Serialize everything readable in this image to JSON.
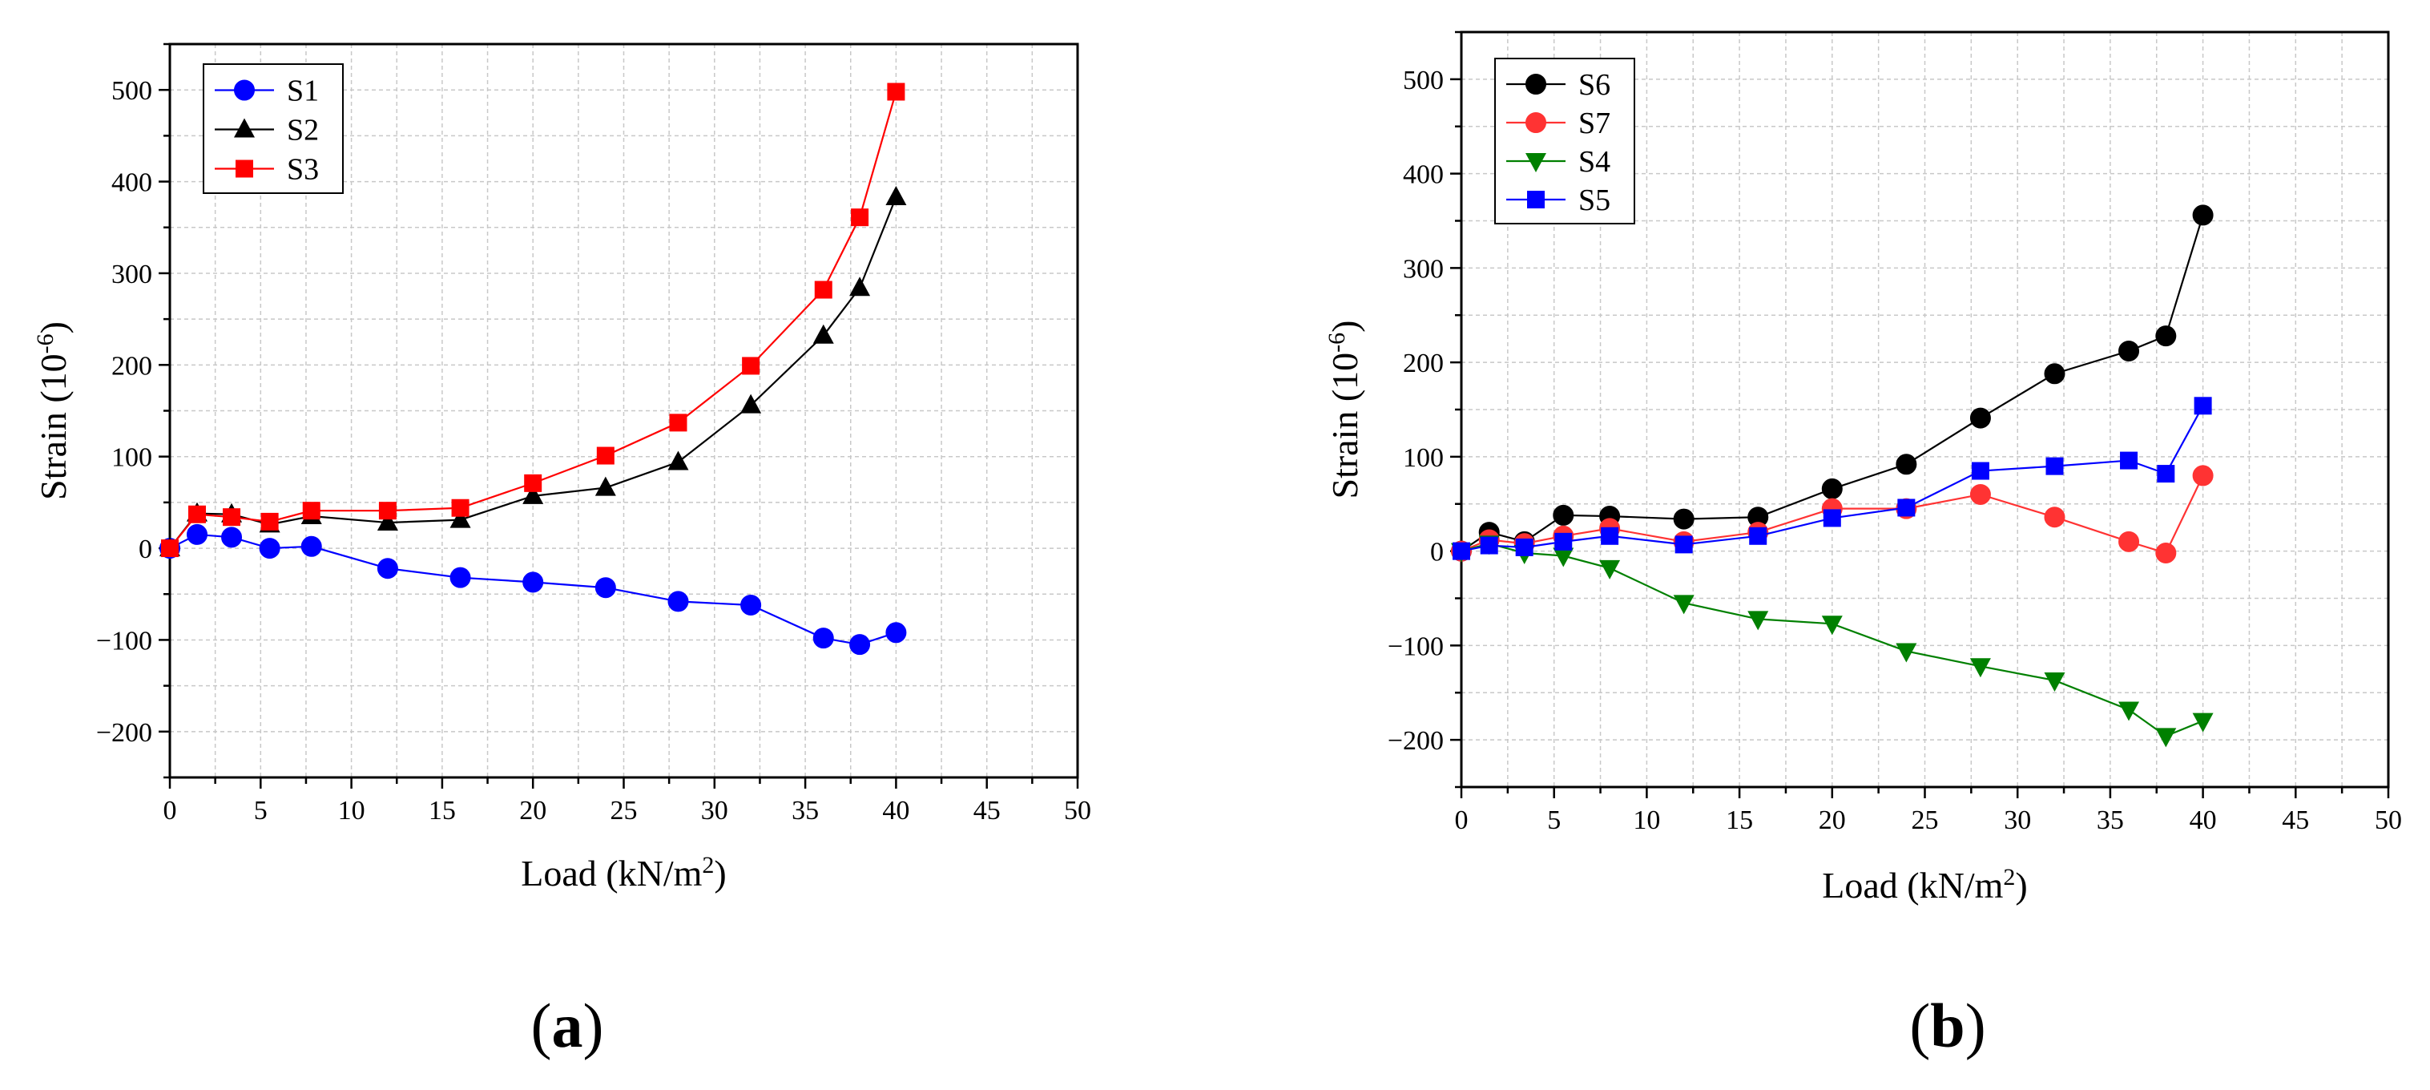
{
  "panel_labels": {
    "a": "a",
    "b": "b"
  },
  "chart_data": [
    {
      "type": "line",
      "id": "a",
      "xlabel": "Load (kN/m",
      "xlabel_sup": "2",
      "xlabel_tail": ")",
      "ylabel": "Strain (10",
      "ylabel_sup": "-6",
      "ylabel_tail": ")",
      "xlim": [
        0,
        50
      ],
      "ylim": [
        -250,
        550
      ],
      "xticks": [
        0,
        5,
        10,
        15,
        20,
        25,
        30,
        35,
        40,
        45,
        50
      ],
      "yticks": [
        -200,
        -100,
        0,
        100,
        200,
        300,
        400,
        500
      ],
      "grid": true,
      "legend_position": "top-left",
      "series": [
        {
          "name": "S1",
          "color": "#0000ff",
          "marker": "circle",
          "x": [
            0,
            1.5,
            3.4,
            5.5,
            7.8,
            12,
            16,
            20,
            24,
            28,
            32,
            36,
            38,
            40
          ],
          "y": [
            0,
            15,
            12,
            0,
            2,
            -22,
            -32,
            -37,
            -43,
            -58,
            -62,
            -98,
            -105,
            -92
          ]
        },
        {
          "name": "S2",
          "color": "#000000",
          "marker": "triangle-up",
          "x": [
            0,
            1.5,
            3.4,
            5.5,
            7.8,
            12,
            16,
            20,
            24,
            28,
            32,
            36,
            38,
            40
          ],
          "y": [
            0,
            38,
            37,
            26,
            35,
            28,
            31,
            57,
            66,
            94,
            156,
            232,
            284,
            383
          ]
        },
        {
          "name": "S3",
          "color": "#ff0000",
          "marker": "square",
          "x": [
            0,
            1.5,
            3.4,
            5.5,
            7.8,
            12,
            16,
            20,
            24,
            28,
            32,
            36,
            38,
            40
          ],
          "y": [
            0,
            37,
            34,
            29,
            41,
            41,
            44,
            71,
            101,
            137,
            199,
            282,
            361,
            498
          ]
        }
      ]
    },
    {
      "type": "line",
      "id": "b",
      "xlabel": "Load (kN/m",
      "xlabel_sup": "2",
      "xlabel_tail": ")",
      "ylabel": "Strain (10",
      "ylabel_sup": "-6",
      "ylabel_tail": ")",
      "xlim": [
        0,
        50
      ],
      "ylim": [
        -250,
        550
      ],
      "xticks": [
        0,
        5,
        10,
        15,
        20,
        25,
        30,
        35,
        40,
        45,
        50
      ],
      "yticks": [
        -200,
        -100,
        0,
        100,
        200,
        300,
        400,
        500
      ],
      "grid": true,
      "legend_position": "top-left",
      "series": [
        {
          "name": "S6",
          "color": "#000000",
          "marker": "circle",
          "x": [
            0,
            1.5,
            3.4,
            5.5,
            8,
            12,
            16,
            20,
            24,
            28,
            32,
            36,
            38,
            40
          ],
          "y": [
            0,
            20,
            10,
            38,
            37,
            34,
            36,
            66,
            92,
            141,
            188,
            212,
            228,
            356
          ]
        },
        {
          "name": "S7",
          "color": "#ff3333",
          "marker": "circle",
          "x": [
            0,
            1.5,
            3.4,
            5.5,
            8,
            12,
            16,
            20,
            24,
            28,
            32,
            36,
            38,
            40
          ],
          "y": [
            0,
            12,
            8,
            16,
            24,
            10,
            20,
            45,
            45,
            60,
            36,
            10,
            -2,
            80
          ]
        },
        {
          "name": "S4",
          "color": "#008000",
          "marker": "triangle-down",
          "x": [
            0,
            1.5,
            3.4,
            5.5,
            8,
            12,
            16,
            20,
            24,
            28,
            32,
            36,
            38,
            40
          ],
          "y": [
            0,
            8,
            -2,
            -5,
            -18,
            -55,
            -72,
            -77,
            -106,
            -122,
            -137,
            -168,
            -196,
            -180
          ]
        },
        {
          "name": "S5",
          "color": "#0000ff",
          "marker": "square",
          "x": [
            0,
            1.5,
            3.4,
            5.5,
            8,
            12,
            16,
            20,
            24,
            28,
            32,
            36,
            38,
            40
          ],
          "y": [
            0,
            6,
            4,
            10,
            16,
            7,
            16,
            35,
            46,
            85,
            90,
            96,
            82,
            154
          ]
        }
      ]
    }
  ]
}
